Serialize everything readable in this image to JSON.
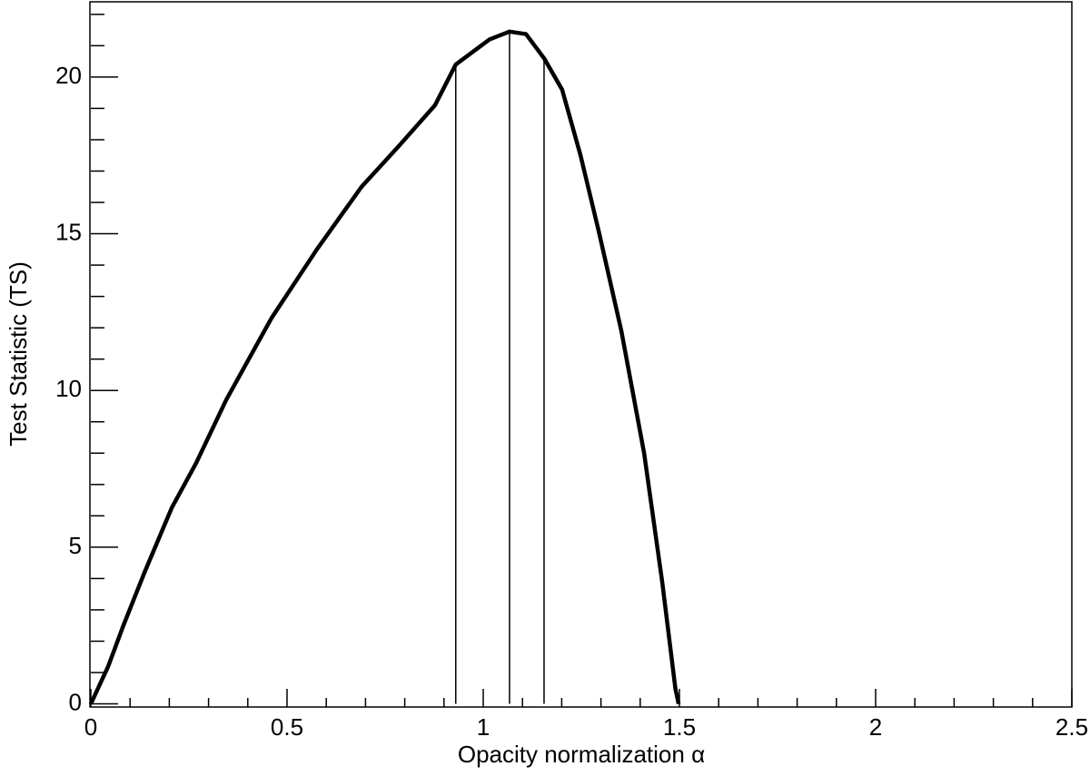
{
  "chart_data": {
    "type": "line",
    "xlabel": "Opacity normalization α",
    "ylabel": "Test Statistic (TS)",
    "x": [
      0,
      0.044,
      0.083,
      0.137,
      0.206,
      0.269,
      0.345,
      0.46,
      0.576,
      0.69,
      0.785,
      0.877,
      0.93,
      1.016,
      1.067,
      1.109,
      1.155,
      1.201,
      1.248,
      1.294,
      1.352,
      1.41,
      1.456,
      1.49,
      1.498
    ],
    "series": [
      {
        "color": "#000000",
        "values": [
          0,
          1.19,
          2.5,
          4.2,
          6.25,
          7.7,
          9.7,
          12.3,
          14.5,
          16.5,
          17.8,
          19.1,
          20.4,
          21.2,
          21.45,
          21.37,
          20.6,
          19.6,
          17.5,
          15.1,
          11.9,
          8.0,
          3.9,
          0.46,
          0
        ]
      }
    ],
    "markers": [
      {
        "x": 0.93,
        "y": 20.4
      },
      {
        "x": 1.067,
        "y": 21.45
      },
      {
        "x": 1.155,
        "y": 20.6
      }
    ],
    "xlim": [
      0,
      2.5
    ],
    "ylim": [
      -0.1,
      22.4
    ],
    "xticks": [
      0,
      0.5,
      1,
      1.5,
      2,
      2.5
    ],
    "yticks": [
      0,
      5,
      10,
      15,
      20
    ],
    "xminorticks": [
      0.1,
      0.2,
      0.3,
      0.4,
      0.6,
      0.7,
      0.8,
      0.9,
      1.1,
      1.2,
      1.3,
      1.4,
      1.6,
      1.7,
      1.8,
      1.9,
      2.1,
      2.2,
      2.3,
      2.4
    ],
    "yminorticks": [
      1,
      2,
      3,
      4,
      6,
      7,
      8,
      9,
      11,
      12,
      13,
      14,
      16,
      17,
      18,
      19,
      21,
      22
    ],
    "grid": false
  }
}
